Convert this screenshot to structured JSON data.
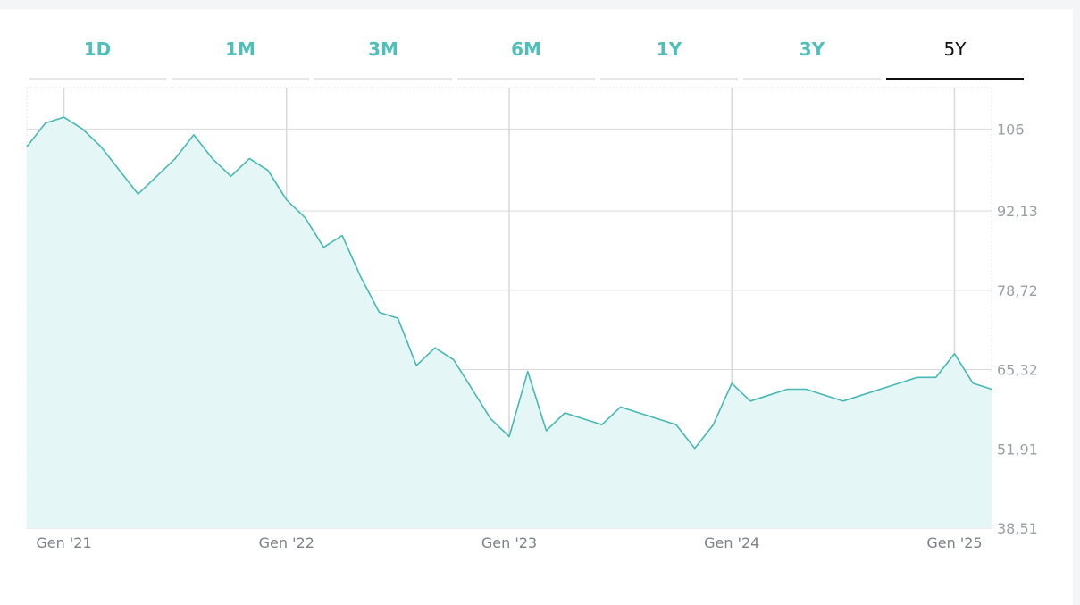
{
  "tabs": [
    {
      "label": "1D",
      "active": false
    },
    {
      "label": "1M",
      "active": false
    },
    {
      "label": "3M",
      "active": false
    },
    {
      "label": "6M",
      "active": false
    },
    {
      "label": "1Y",
      "active": false
    },
    {
      "label": "3Y",
      "active": false
    },
    {
      "label": "5Y",
      "active": true
    }
  ],
  "colors": {
    "accent": "#4fbfb9",
    "line": "#47b8b3",
    "fill": "#e4f6f6",
    "grid": "#d7d9dd",
    "active_tab": "#111111"
  },
  "chart_data": {
    "type": "area",
    "title": "",
    "xlabel": "",
    "ylabel": "",
    "y_ticks": [
      "106",
      "92,13",
      "78,72",
      "65,32",
      "51,91",
      "38,51"
    ],
    "x_ticks": [
      "Gen '21",
      "Gen '22",
      "Gen '23",
      "Gen '24",
      "Gen '25"
    ],
    "ylim": [
      38.51,
      113
    ],
    "xlim": [
      "2020-11",
      "2025-03"
    ],
    "grid": true,
    "series": [
      {
        "x": [
          "2020-11",
          "2020-12",
          "2021-01",
          "2021-02",
          "2021-03",
          "2021-04",
          "2021-05",
          "2021-06",
          "2021-07",
          "2021-08",
          "2021-09",
          "2021-10",
          "2021-11",
          "2021-12",
          "2022-01",
          "2022-02",
          "2022-03",
          "2022-04",
          "2022-05",
          "2022-06",
          "2022-07",
          "2022-08",
          "2022-09",
          "2022-10",
          "2022-11",
          "2022-12",
          "2023-01",
          "2023-02",
          "2023-03",
          "2023-04",
          "2023-05",
          "2023-06",
          "2023-07",
          "2023-08",
          "2023-09",
          "2023-10",
          "2023-11",
          "2023-12",
          "2024-01",
          "2024-02",
          "2024-03",
          "2024-04",
          "2024-05",
          "2024-06",
          "2024-07",
          "2024-08",
          "2024-09",
          "2024-10",
          "2024-11",
          "2024-12",
          "2025-01",
          "2025-02",
          "2025-03"
        ],
        "values": [
          103,
          107,
          108,
          106,
          103,
          99,
          95,
          98,
          101,
          105,
          101,
          98,
          101,
          99,
          94,
          91,
          86,
          88,
          81,
          75,
          74,
          66,
          69,
          67,
          62,
          57,
          54,
          65,
          55,
          58,
          57,
          56,
          59,
          58,
          57,
          56,
          52,
          56,
          63,
          60,
          61,
          62,
          62,
          61,
          60,
          61,
          62,
          63,
          64,
          64,
          68,
          63,
          62
        ]
      }
    ]
  }
}
